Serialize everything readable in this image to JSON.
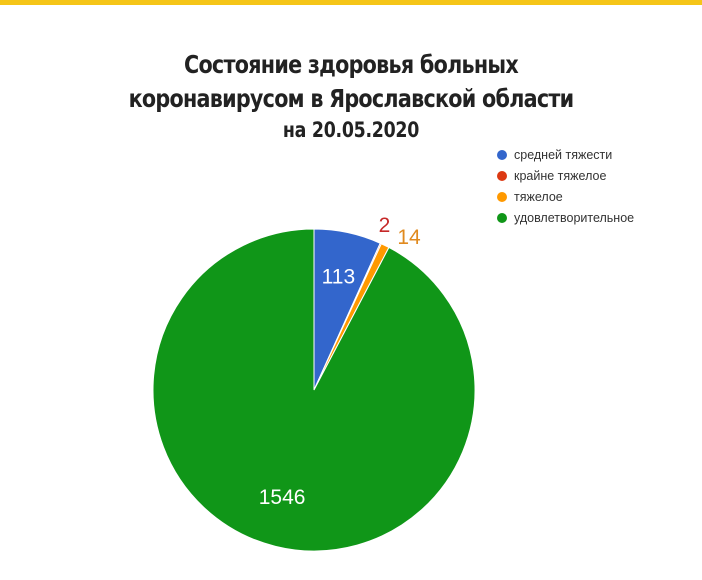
{
  "header": {
    "accent_color": "#f5c518"
  },
  "chart_data": {
    "type": "pie",
    "title": "Состояние здоровья больных коронавирусом в Ярославской области",
    "title_lines": [
      "Состояние здоровья больных",
      "коронавирусом в Ярославской области"
    ],
    "subtitle": "на 20.05.2020",
    "legend_position": "top-right",
    "slices": [
      {
        "name": "средней тяжести",
        "value": 113,
        "label": "113",
        "color": "#3366cc",
        "label_color": "#ffffff"
      },
      {
        "name": "крайне тяжелое",
        "value": 2,
        "label": "2",
        "color": "#dc3912",
        "label_color": "#c62828"
      },
      {
        "name": "тяжелое",
        "value": 14,
        "label": "14",
        "color": "#ff9900",
        "label_color": "#e08a1e"
      },
      {
        "name": "удовлетворительное",
        "value": 1546,
        "label": "1546",
        "color": "#109618",
        "label_color": "#ffffff"
      }
    ]
  }
}
